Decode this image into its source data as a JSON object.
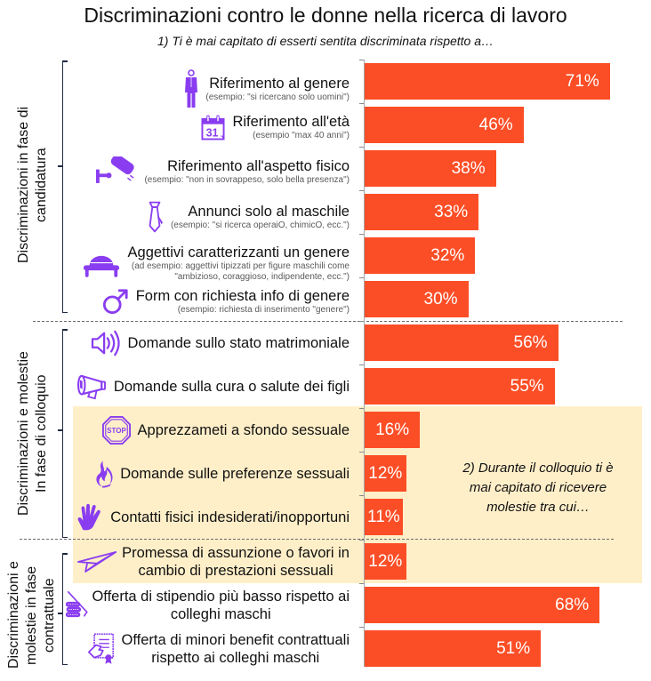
{
  "colors": {
    "bar": "#FC4E26",
    "highlight": "#FFEFC9",
    "icon": "#8A3DF0",
    "bracket": "#1F2A44",
    "value_text": "#FFFFFF"
  },
  "icons": {
    "names": [
      "man-in-suit",
      "calendar",
      "security-camera",
      "necktie",
      "bowler-hat",
      "male-symbol",
      "speaker",
      "megaphone",
      "stop-sign",
      "flame",
      "hand",
      "paper-plane",
      "coins",
      "certificate"
    ],
    "calendar_day": "31",
    "stop_text": "STOP"
  },
  "chart_data": {
    "type": "bar",
    "orientation": "horizontal",
    "title": "Discriminazioni contro le donne nella ricerca di lavoro",
    "subtitle": "1) Ti è mai capitato di esserti sentita discriminata rispetto a…",
    "xlabel": "",
    "ylabel": "",
    "xlim": [
      0,
      100
    ],
    "unit": "%",
    "grid": false,
    "legend": "none",
    "categories": [
      "Riferimento al genere",
      "Riferimento all'età",
      "Riferimento all'aspetto fisico",
      "Annunci solo al maschile",
      "Aggettivi caratterizzanti un genere",
      "Form con richiesta info di genere",
      "Domande sullo stato matrimoniale",
      "Domande sulla cura o salute dei figli",
      "Apprezzameti a sfondo sessuale",
      "Domande sulle preferenze sessuali",
      "Contatti fisici indesiderati/inopportuni",
      "Promessa di assunzione o favori in\ncambio di prestazioni sessuali",
      "Offerta di stipendio più basso rispetto ai\ncolleghi maschi",
      "Offerta di minori benefit contrattuali\nrispetto ai colleghi maschi"
    ],
    "notes": [
      "(esempio: \"si ricercano solo uomini\")",
      "(esempio \"max 40 anni\")",
      "(esempio: \"non in sovrappeso, solo bella presenza\")",
      "(esempio: \"si ricerca operaiO, chimicO, ecc.\")",
      "(ad esempio: aggettivi tipizzati per figure maschili come\n\"ambizioso, coraggioso, indipendente, ecc.\")",
      "(esempio: richiesta di inserimento \"genere\")",
      "",
      "",
      "",
      "",
      "",
      "",
      "",
      ""
    ],
    "values": [
      71,
      46,
      38,
      33,
      32,
      30,
      56,
      55,
      16,
      12,
      11,
      12,
      68,
      51
    ],
    "value_labels": [
      "71%",
      "46%",
      "38%",
      "33%",
      "32%",
      "30%",
      "56%",
      "55%",
      "16%",
      "12%",
      "11%",
      "12%",
      "68%",
      "51%"
    ],
    "groups": [
      {
        "label": "Discriminazioni in fase di\ncandidatura",
        "rows": [
          0,
          1,
          2,
          3,
          4,
          5
        ]
      },
      {
        "label": "Discriminazioni e molestie\nIn fase di colloquio",
        "rows": [
          6,
          7,
          8,
          9,
          10
        ]
      },
      {
        "label": "Discriminazioni e\nmolestie in fase\ncontrattuale",
        "rows": [
          11,
          12,
          13
        ]
      }
    ],
    "highlighted_rows": [
      8,
      9,
      10,
      11
    ],
    "annotation": "2) Durante il colloquio ti è\nmai capitato di ricevere\nmolestie tra cui…"
  }
}
